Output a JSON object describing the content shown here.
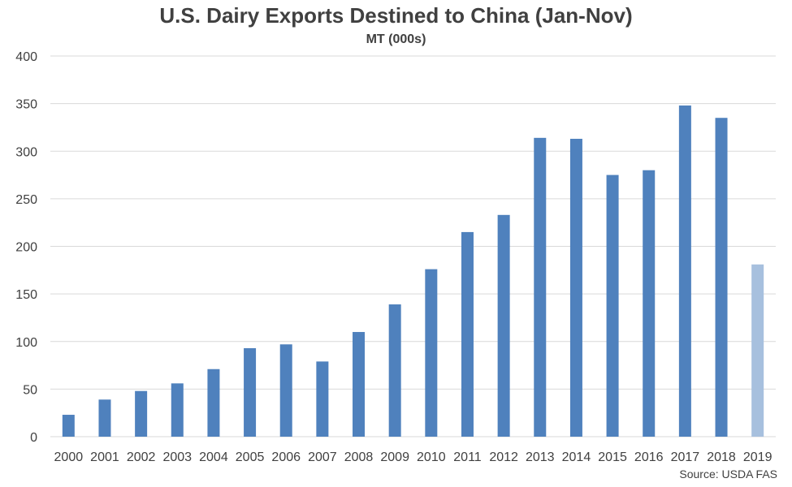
{
  "chart_data": {
    "type": "bar",
    "title": "U.S. Dairy Exports Destined to China (Jan-Nov)",
    "subtitle": "MT (000s)",
    "source": "Source: USDA FAS",
    "categories": [
      "2000",
      "2001",
      "2002",
      "2003",
      "2004",
      "2005",
      "2006",
      "2007",
      "2008",
      "2009",
      "2010",
      "2011",
      "2012",
      "2013",
      "2014",
      "2015",
      "2016",
      "2017",
      "2018",
      "2019"
    ],
    "values": [
      23,
      39,
      48,
      56,
      71,
      93,
      97,
      79,
      110,
      139,
      176,
      215,
      233,
      314,
      313,
      275,
      280,
      348,
      335,
      181
    ],
    "ylim": [
      0,
      400
    ],
    "yticks": [
      "0",
      "50",
      "100",
      "150",
      "200",
      "250",
      "300",
      "350",
      "400"
    ],
    "grid": true,
    "colors": {
      "bar": "#4f81bd",
      "bar_highlight": "#a7c0de",
      "grid": "#d9d9d9",
      "text": "#404040"
    },
    "highlight_index": 19
  }
}
